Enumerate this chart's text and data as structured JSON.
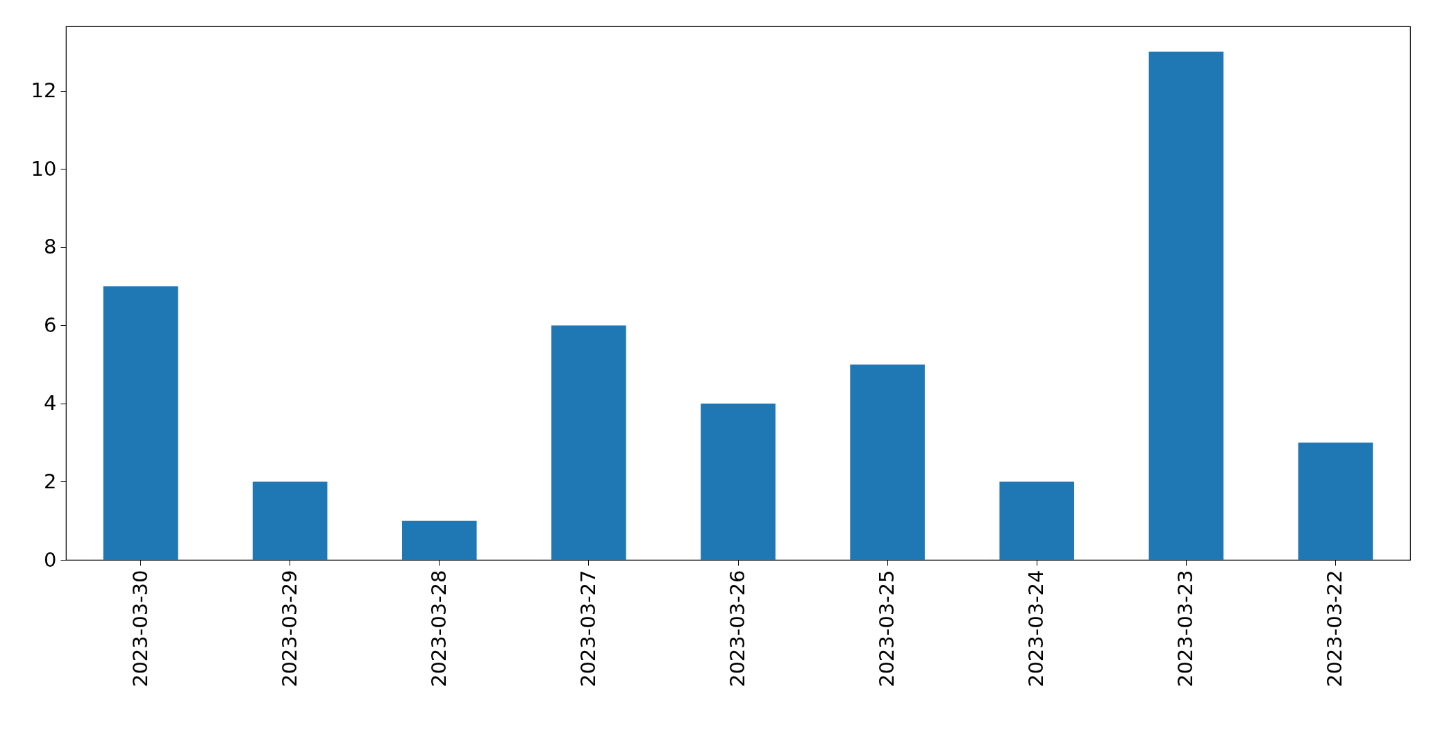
{
  "chart_data": {
    "type": "bar",
    "categories": [
      "2023-03-30",
      "2023-03-29",
      "2023-03-28",
      "2023-03-27",
      "2023-03-26",
      "2023-03-25",
      "2023-03-24",
      "2023-03-23",
      "2023-03-22"
    ],
    "values": [
      7,
      2,
      1,
      6,
      4,
      5,
      2,
      13,
      3
    ],
    "color": "#1f77b4",
    "ylim": [
      0,
      13.65
    ],
    "yticks": [
      0,
      2,
      4,
      6,
      8,
      10,
      12
    ],
    "grid": false
  }
}
